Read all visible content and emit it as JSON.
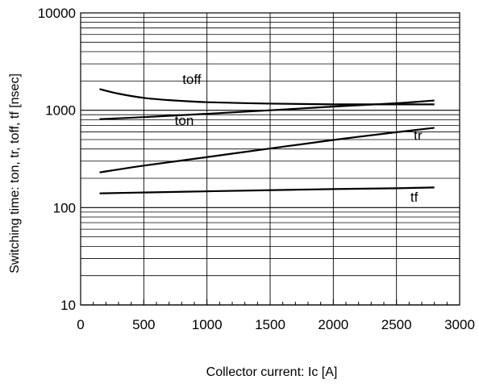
{
  "chart_data": {
    "type": "line",
    "title": "",
    "xlabel": "Collector current: Ic [A]",
    "ylabel": "Switching time: ton, tr, toff, tf [nsec]",
    "x_scale": "linear",
    "y_scale": "log",
    "xlim": [
      0,
      3000
    ],
    "ylim": [
      10,
      10000
    ],
    "x_ticks": [
      "0",
      "500",
      "1000",
      "1500",
      "2000",
      "2500",
      "3000"
    ],
    "y_ticks": [
      "10",
      "100",
      "1000",
      "10000"
    ],
    "grid": true,
    "legend": "none (series labeled inline)",
    "series": [
      {
        "name": "toff",
        "x": [
          150,
          300,
          500,
          700,
          1000,
          1500,
          2000,
          2500,
          2800
        ],
        "y": [
          1650,
          1480,
          1340,
          1270,
          1210,
          1170,
          1150,
          1150,
          1150
        ]
      },
      {
        "name": "ton",
        "x": [
          150,
          500,
          1000,
          1500,
          2000,
          2500,
          2800
        ],
        "y": [
          810,
          850,
          920,
          1000,
          1090,
          1180,
          1260
        ]
      },
      {
        "name": "tr",
        "x": [
          150,
          500,
          1000,
          1500,
          2000,
          2500,
          2800
        ],
        "y": [
          230,
          270,
          330,
          405,
          495,
          595,
          660
        ]
      },
      {
        "name": "tf",
        "x": [
          150,
          500,
          1000,
          1500,
          2000,
          2500,
          2800
        ],
        "y": [
          140,
          143,
          147,
          151,
          155,
          158,
          161
        ]
      }
    ],
    "series_labels": [
      {
        "text": "toff",
        "x": 880,
        "y": 1860
      },
      {
        "text": "ton",
        "x": 820,
        "y": 705
      },
      {
        "text": "tr",
        "x": 2670,
        "y": 495
      },
      {
        "text": "tf",
        "x": 2640,
        "y": 115
      }
    ],
    "line_color": "#000000",
    "grid_color": "#000000"
  }
}
